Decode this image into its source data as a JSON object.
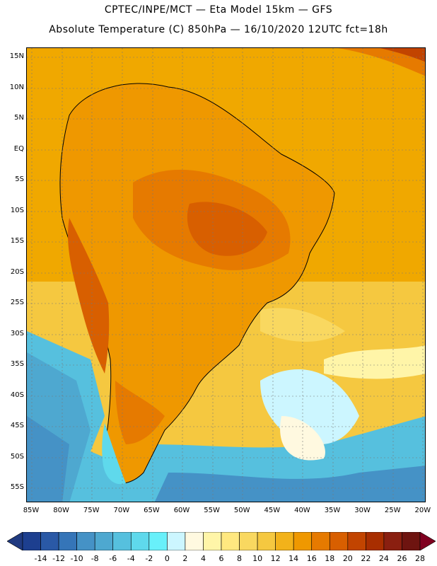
{
  "title_line1": "CPTEC/INPE/MCT —  Eta Model 15km — GFS",
  "title_line2": "Absolute Temperature (C) 850hPa — 16/10/2020 12UTC fct=18h",
  "lat_labels": [
    "15N",
    "10N",
    "5N",
    "EQ",
    "5S",
    "10S",
    "15S",
    "20S",
    "25S",
    "30S",
    "35S",
    "40S",
    "45S",
    "50S",
    "55S"
  ],
  "lon_labels": [
    "85W",
    "80W",
    "75W",
    "70W",
    "65W",
    "60W",
    "55W",
    "50W",
    "45W",
    "40W",
    "35W",
    "30W",
    "25W",
    "20W"
  ],
  "colorbar": {
    "labels": [
      "-14",
      "-12",
      "-10",
      "-8",
      "-6",
      "-4",
      "-2",
      "0",
      "2",
      "4",
      "6",
      "8",
      "10",
      "12",
      "14",
      "16",
      "18",
      "20",
      "22",
      "24",
      "26",
      "28"
    ],
    "colors": [
      "#1d3f8f",
      "#2a59a6",
      "#3575b8",
      "#4592c6",
      "#4ea8d0",
      "#56c0de",
      "#5fd9ec",
      "#68f0fa",
      "#ccf6ff",
      "#fff9e0",
      "#fff5a8",
      "#ffe880",
      "#f9d860",
      "#f5c840",
      "#f2b21a",
      "#ef9800",
      "#e67a00",
      "#d85f00",
      "#c24400",
      "#a82e00",
      "#8a1f10",
      "#6e1410"
    ],
    "below_color": "#203a80",
    "above_color": "#800020"
  }
}
